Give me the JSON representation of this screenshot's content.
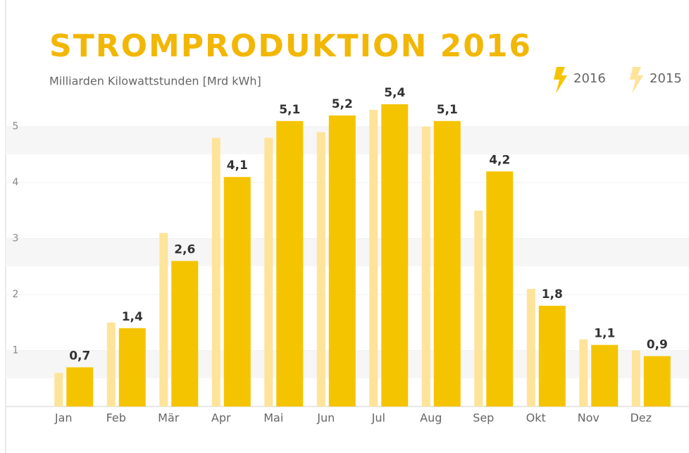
{
  "chart_data": {
    "type": "bar",
    "title": "STROMPRODUKTION 2016",
    "subtitle": "Milliarden Kilowattstunden [Mrd kWh]",
    "categories": [
      "Jan",
      "Feb",
      "Mär",
      "Apr",
      "Mai",
      "Jun",
      "Jul",
      "Aug",
      "Sep",
      "Okt",
      "Nov",
      "Dez"
    ],
    "series": [
      {
        "name": "2016",
        "color": "#f5c400",
        "values": [
          0.7,
          1.4,
          2.6,
          4.1,
          5.1,
          5.2,
          5.4,
          5.1,
          4.2,
          1.8,
          1.1,
          0.9
        ],
        "value_labels": [
          "0,7",
          "1,4",
          "2,6",
          "4,1",
          "5,1",
          "5,2",
          "5,4",
          "5,1",
          "4,2",
          "1,8",
          "1,1",
          "0,9"
        ]
      },
      {
        "name": "2015",
        "color": "#fde49a",
        "values": [
          0.6,
          1.5,
          3.1,
          4.8,
          4.8,
          4.9,
          5.3,
          5.0,
          3.5,
          2.1,
          1.2,
          1.0
        ]
      }
    ],
    "ylim": [
      0,
      5.5
    ],
    "yticks": [
      1,
      2,
      3,
      4,
      5
    ],
    "grid": true,
    "legend": "top-right"
  }
}
